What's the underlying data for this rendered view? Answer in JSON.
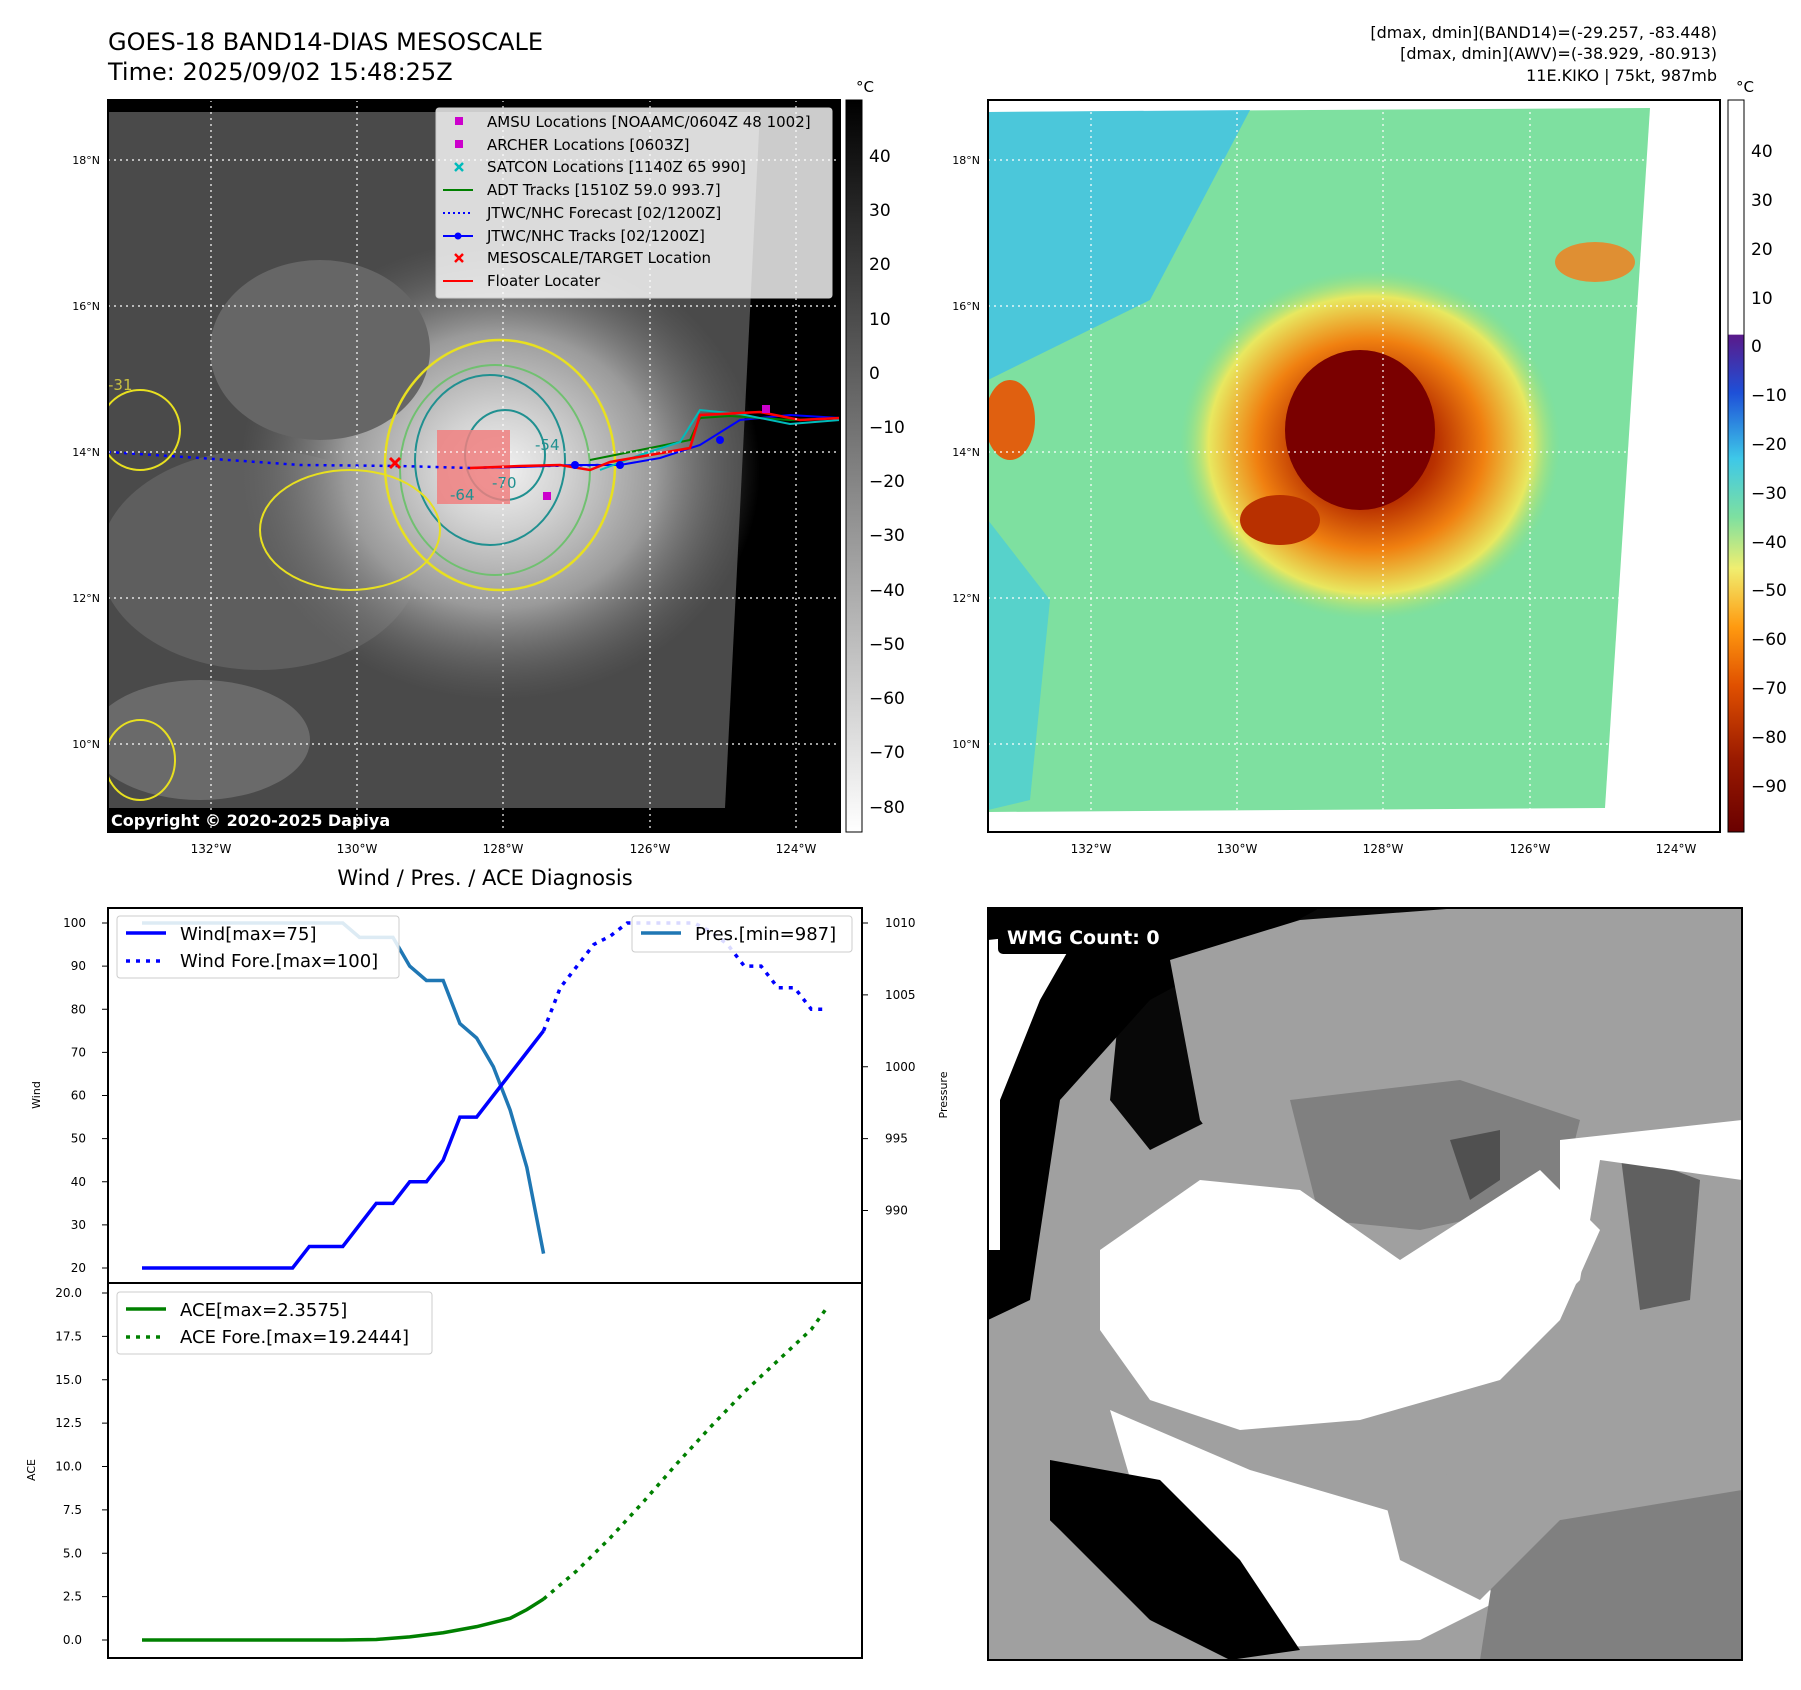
{
  "header": {
    "title": "GOES-18 BAND14-DIAS MESOSCALE",
    "time": "Time: 2025/09/02 15:48:25Z",
    "stat1": "[dmax, dmin](BAND14)=(-29.257, -83.448)",
    "stat2": "[dmax, dmin](AWV)=(-38.929, -80.913)",
    "stat3": "11E.KIKO | 75kt, 987mb"
  },
  "map": {
    "lat_labels": [
      "18°N",
      "16°N",
      "14°N",
      "12°N",
      "10°N"
    ],
    "lon_labels": [
      "132°W",
      "130°W",
      "128°W",
      "126°W",
      "124°W"
    ],
    "copyright": "Copyright © 2020-2025 Dapiya",
    "unit": "°C",
    "cbar1_ticks": [
      "40",
      "30",
      "20",
      "10",
      "0",
      "−10",
      "−20",
      "−30",
      "−40",
      "−50",
      "−60",
      "−70",
      "−80"
    ],
    "cbar2_ticks": [
      "40",
      "30",
      "20",
      "10",
      "0",
      "−10",
      "−20",
      "−30",
      "−40",
      "−50",
      "−60",
      "−70",
      "−80",
      "−90"
    ],
    "contour_labels": [
      "-54",
      "-64",
      "-70",
      "-31"
    ],
    "legend": [
      {
        "label": "AMSU Locations [NOAAMC/0604Z 48 1002]",
        "color": "#cc00cc",
        "marker": "square"
      },
      {
        "label": "ARCHER Locations [0603Z]",
        "color": "#cc00cc",
        "marker": "square"
      },
      {
        "label": "SATCON Locations [1140Z 65 990]",
        "color": "#00bbbb",
        "marker": "x"
      },
      {
        "label": "ADT Tracks [1510Z 59.0 993.7]",
        "color": "#008000",
        "marker": "line"
      },
      {
        "label": "JTWC/NHC Forecast [02/1200Z]",
        "color": "#0000ff",
        "marker": "dotted"
      },
      {
        "label": "JTWC/NHC Tracks [02/1200Z]",
        "color": "#0000ff",
        "marker": "line-dot"
      },
      {
        "label": "MESOSCALE/TARGET Location",
        "color": "#ff0000",
        "marker": "x"
      },
      {
        "label": "Floater Locater",
        "color": "#ff0000",
        "marker": "line"
      }
    ]
  },
  "wmg": {
    "label": "WMG Count: 0"
  },
  "chart_data": [
    {
      "type": "line",
      "title": "Wind / Pres. / ACE Diagnosis",
      "ylabel": "Wind",
      "ylabel_right": "Pressure",
      "ylim": [
        20,
        100
      ],
      "ylim_right": [
        986,
        1010
      ],
      "yticks": [
        "100",
        "90",
        "80",
        "70",
        "60",
        "50",
        "40",
        "30",
        "20"
      ],
      "yticks_right": [
        "1010",
        "1005",
        "1000",
        "995",
        "990"
      ],
      "x": [
        0,
        1,
        2,
        3,
        4,
        5,
        6,
        7,
        8,
        9,
        10,
        11,
        12,
        13,
        14,
        15,
        16,
        17,
        18,
        19,
        20,
        21,
        22,
        23,
        24,
        25,
        26,
        27,
        28,
        29,
        30,
        31,
        32,
        33,
        34,
        35,
        36,
        37,
        38,
        39,
        40,
        41
      ],
      "series": [
        {
          "name": "Wind[max=75]",
          "color": "#0000ff",
          "style": "solid",
          "x": [
            0,
            1,
            2,
            3,
            4,
            5,
            6,
            7,
            8,
            9,
            10,
            11,
            12,
            13,
            14,
            15,
            16,
            17,
            18,
            19,
            20,
            21,
            22,
            23,
            24
          ],
          "values": [
            20,
            20,
            20,
            20,
            20,
            20,
            20,
            20,
            20,
            20,
            25,
            25,
            25,
            30,
            35,
            35,
            40,
            40,
            45,
            55,
            55,
            60,
            65,
            70,
            75
          ]
        },
        {
          "name": "Wind Fore.[max=100]",
          "color": "#0000ff",
          "style": "dotted",
          "x": [
            24,
            25,
            26,
            27,
            28,
            29,
            30,
            31,
            32,
            33,
            34,
            35,
            36,
            37,
            38,
            39,
            40,
            41
          ],
          "values": [
            75,
            85,
            90,
            95,
            97,
            100,
            100,
            100,
            100,
            100,
            98,
            95,
            90,
            90,
            85,
            85,
            80,
            80
          ]
        },
        {
          "name": "Pres.[min=987]",
          "color": "#1f77b4",
          "style": "solid",
          "axis": "right",
          "x": [
            0,
            1,
            2,
            3,
            4,
            5,
            6,
            7,
            8,
            9,
            10,
            11,
            12,
            13,
            14,
            15,
            16,
            17,
            18,
            19,
            20,
            21,
            22,
            23,
            24
          ],
          "values": [
            1010,
            1010,
            1010,
            1010,
            1010,
            1010,
            1010,
            1010,
            1010,
            1010,
            1010,
            1010,
            1010,
            1009,
            1009,
            1009,
            1007,
            1006,
            1006,
            1003,
            1002,
            1000,
            997,
            993,
            987
          ]
        }
      ]
    },
    {
      "type": "line",
      "ylabel": "ACE",
      "ylim": [
        0,
        20
      ],
      "yticks": [
        "20.0",
        "17.5",
        "15.0",
        "12.5",
        "10.0",
        "7.5",
        "5.0",
        "2.5",
        "0.0"
      ],
      "series": [
        {
          "name": "ACE[max=2.3575]",
          "color": "#008000",
          "style": "solid",
          "x": [
            0,
            2,
            4,
            6,
            8,
            10,
            12,
            14,
            16,
            18,
            20,
            22,
            23,
            24
          ],
          "values": [
            0,
            0,
            0,
            0,
            0,
            0,
            0,
            0.03,
            0.18,
            0.42,
            0.77,
            1.25,
            1.75,
            2.36
          ]
        },
        {
          "name": "ACE Fore.[max=19.2444]",
          "color": "#008000",
          "style": "dotted",
          "x": [
            24,
            26,
            28,
            30,
            32,
            34,
            36,
            38,
            40,
            41
          ],
          "values": [
            2.36,
            4.0,
            5.9,
            8.0,
            10.2,
            12.3,
            14.3,
            16.1,
            17.9,
            19.24
          ]
        }
      ]
    }
  ]
}
